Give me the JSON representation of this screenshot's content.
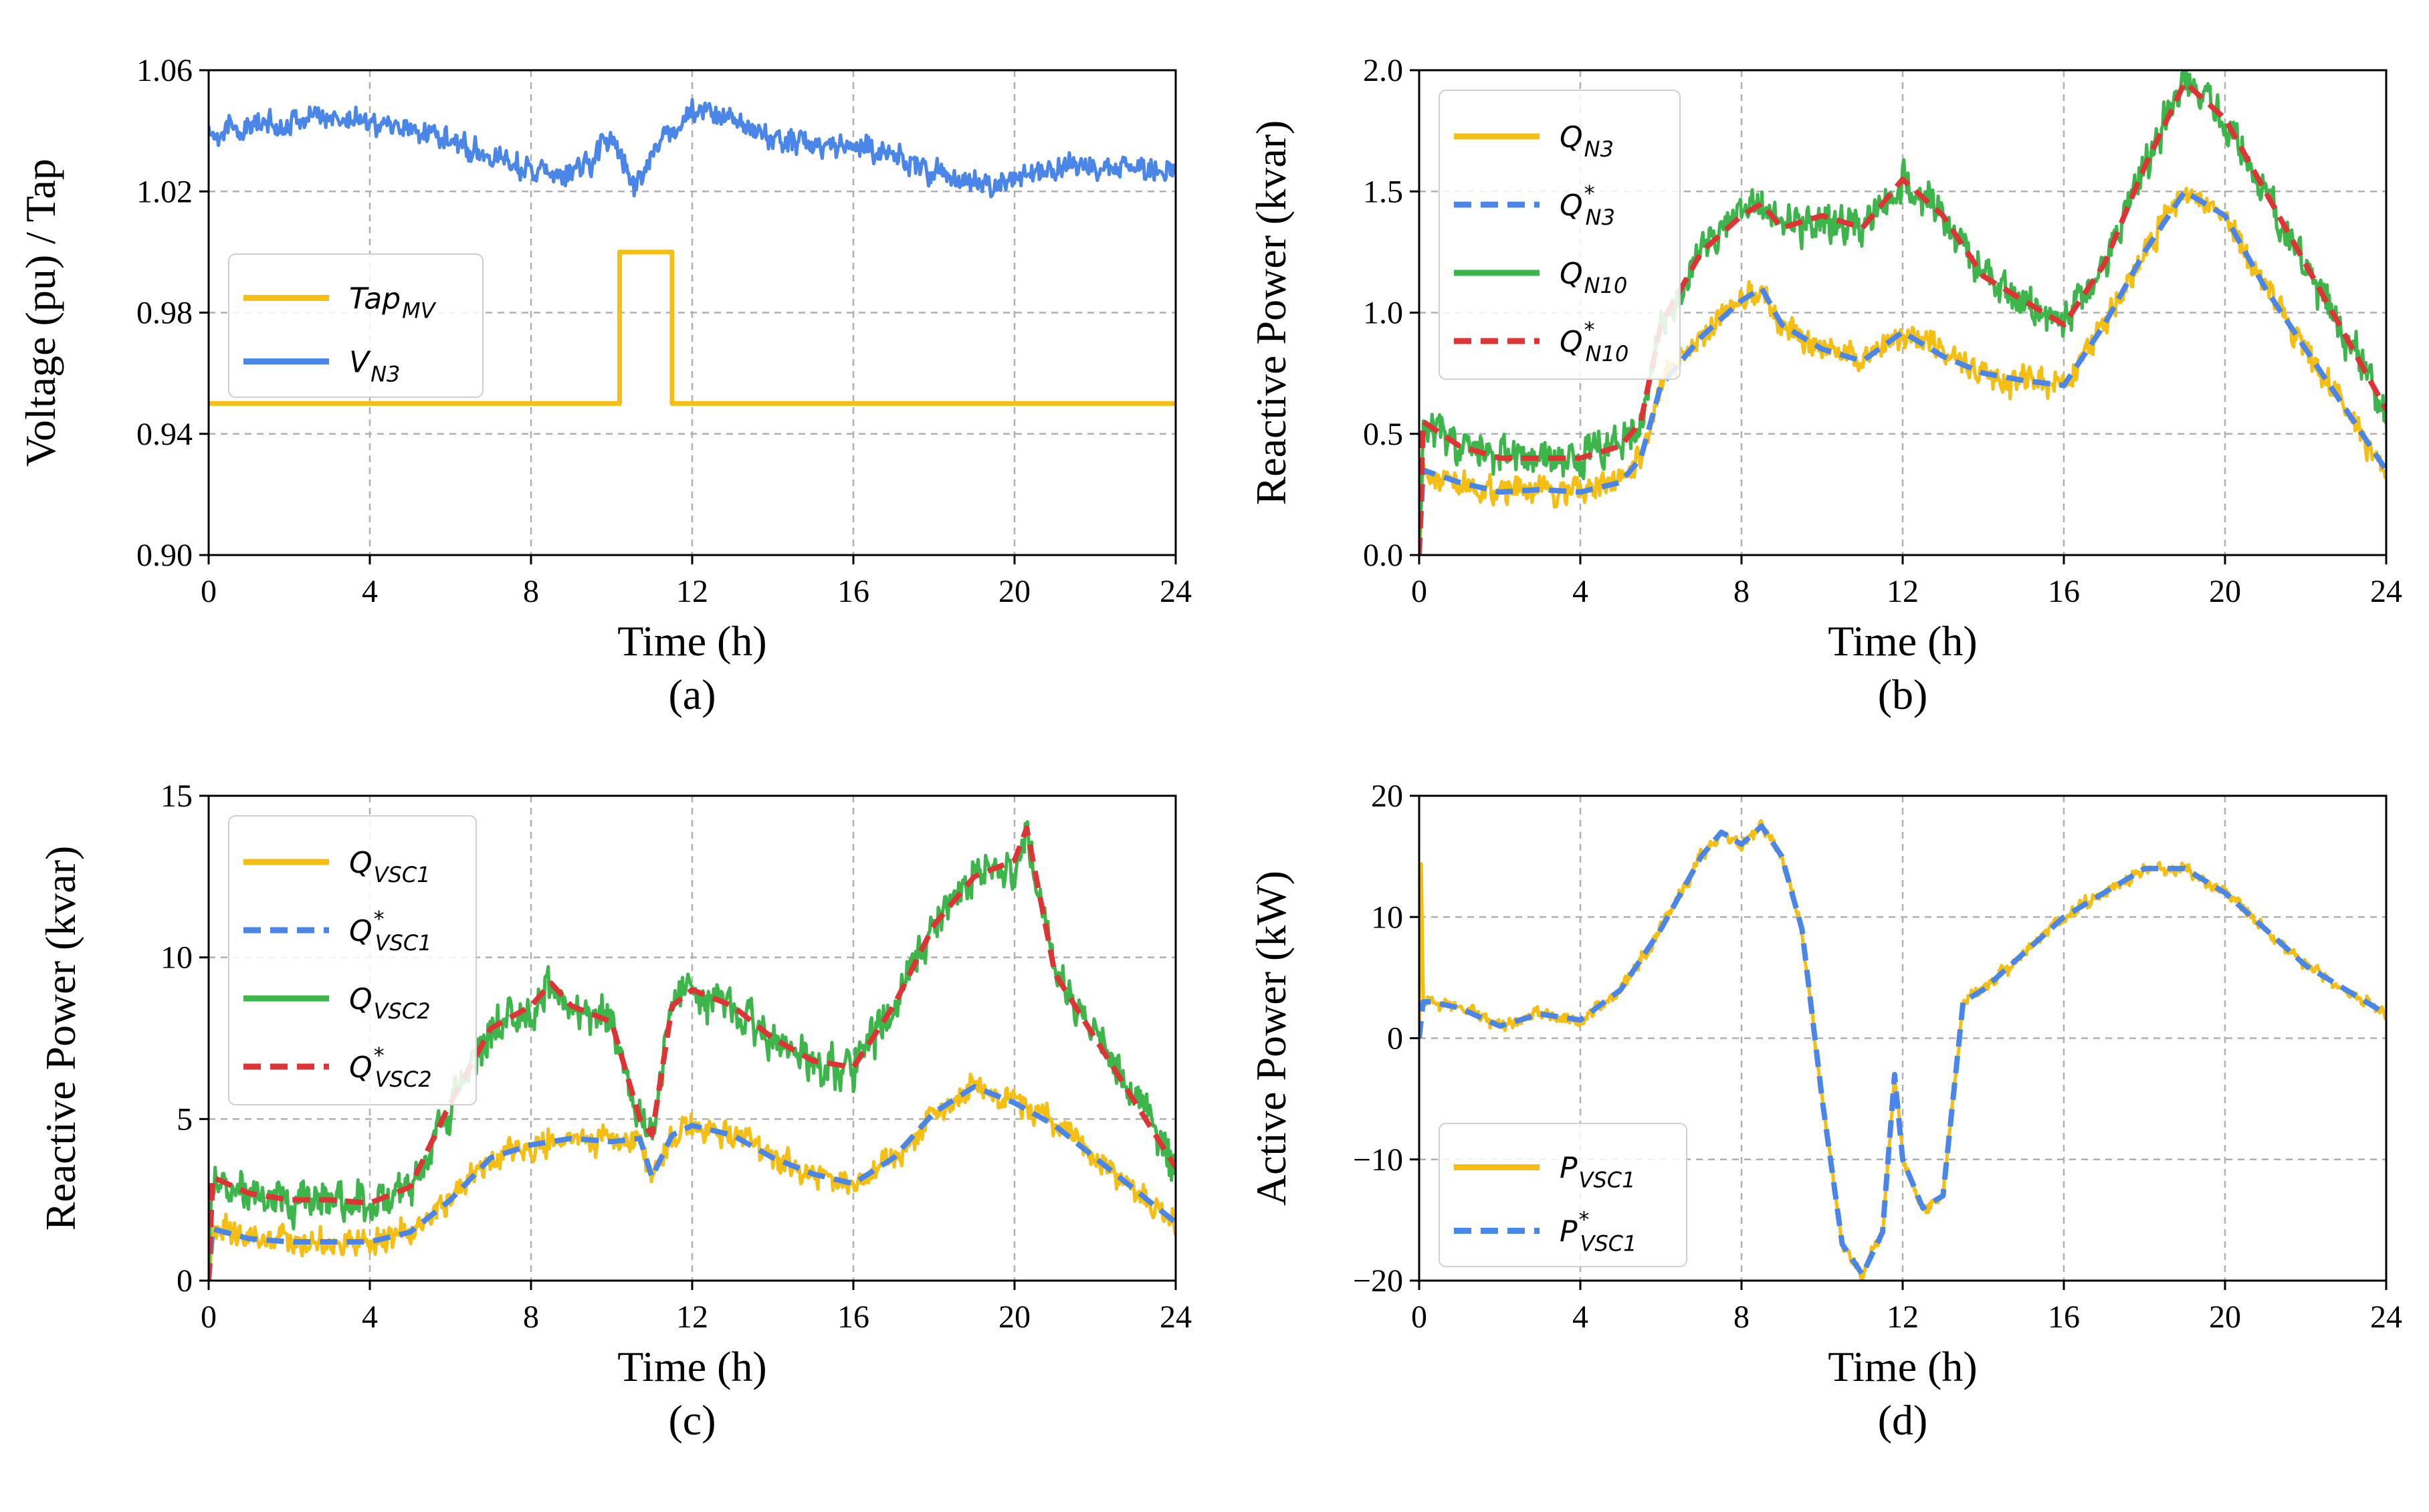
{
  "colors": {
    "yellow": "#F5BE12",
    "blue": "#4A86E8",
    "green": "#3CB54A",
    "red": "#DD3535"
  },
  "chart_data": [
    {
      "id": "a",
      "type": "line",
      "caption": "(a)",
      "xlabel": "Time (h)",
      "ylabel": "Voltage (pu) / Tap",
      "xlim": [
        0,
        24
      ],
      "ylim": [
        0.9,
        1.06
      ],
      "xticks": [
        "0",
        "4",
        "8",
        "12",
        "16",
        "20",
        "24"
      ],
      "yticks": [
        "0.90",
        "0.94",
        "0.98",
        "1.02",
        "1.06"
      ],
      "ytick_values": [
        0.9,
        0.94,
        0.98,
        1.02,
        1.06
      ],
      "legend": {
        "position": "center-left"
      },
      "series": [
        {
          "name": "Tap",
          "subscript": "MV",
          "color": "yellow",
          "dash": false,
          "noise": 0,
          "x": [
            0,
            10.2,
            10.2,
            11.5,
            11.5,
            24
          ],
          "y": [
            0.95,
            0.95,
            1.0,
            1.0,
            0.95,
            0.95
          ]
        },
        {
          "name": "V",
          "subscript": "N3",
          "color": "blue",
          "dash": false,
          "noise": 0.0035,
          "x": [
            0,
            1,
            2,
            3,
            4,
            5,
            6,
            7,
            8,
            8.8,
            9.5,
            10,
            10.3,
            10.6,
            11,
            11.5,
            12,
            12.5,
            13,
            14,
            15,
            16,
            17,
            18,
            19,
            20,
            21,
            22,
            23,
            24
          ],
          "y": [
            1.04,
            1.041,
            1.043,
            1.045,
            1.043,
            1.041,
            1.037,
            1.032,
            1.027,
            1.024,
            1.03,
            1.04,
            1.03,
            1.02,
            1.034,
            1.04,
            1.045,
            1.047,
            1.043,
            1.037,
            1.036,
            1.035,
            1.032,
            1.026,
            1.022,
            1.024,
            1.028,
            1.028,
            1.027,
            1.027
          ]
        }
      ]
    },
    {
      "id": "b",
      "type": "line",
      "caption": "(b)",
      "xlabel": "Time (h)",
      "ylabel": "Reactive Power (kvar)",
      "xlim": [
        0,
        24
      ],
      "ylim": [
        0.0,
        2.0
      ],
      "xticks": [
        "0",
        "4",
        "8",
        "12",
        "16",
        "20",
        "24"
      ],
      "yticks": [
        "0.0",
        "0.5",
        "1.0",
        "1.5",
        "2.0"
      ],
      "ytick_values": [
        0.0,
        0.5,
        1.0,
        1.5,
        2.0
      ],
      "legend": {
        "position": "top-left"
      },
      "series": [
        {
          "name": "Q",
          "subscript": "N3",
          "color": "yellow",
          "dash": false,
          "noise": 0.05,
          "x": [
            0,
            0.1,
            1,
            2,
            3,
            4,
            5,
            5.5,
            6,
            7,
            8,
            8.5,
            9,
            10,
            11,
            12,
            13,
            14,
            15,
            16,
            17,
            18,
            19,
            20,
            21,
            22,
            23,
            24
          ],
          "y": [
            0.0,
            0.35,
            0.3,
            0.26,
            0.27,
            0.26,
            0.3,
            0.4,
            0.7,
            0.9,
            1.05,
            1.1,
            0.95,
            0.85,
            0.8,
            0.92,
            0.82,
            0.75,
            0.72,
            0.7,
            0.95,
            1.25,
            1.5,
            1.4,
            1.1,
            0.85,
            0.6,
            0.35
          ]
        },
        {
          "name": "Q",
          "subscript": "N3",
          "star": true,
          "color": "blue",
          "dash": true,
          "noise": 0,
          "x": [
            0,
            0.1,
            1,
            2,
            3,
            4,
            5,
            5.5,
            6,
            7,
            8,
            8.5,
            9,
            10,
            11,
            12,
            13,
            14,
            15,
            16,
            17,
            18,
            19,
            20,
            21,
            22,
            23,
            24
          ],
          "y": [
            0.0,
            0.35,
            0.3,
            0.26,
            0.27,
            0.26,
            0.3,
            0.4,
            0.7,
            0.9,
            1.05,
            1.1,
            0.95,
            0.85,
            0.8,
            0.92,
            0.82,
            0.75,
            0.72,
            0.7,
            0.95,
            1.25,
            1.5,
            1.4,
            1.1,
            0.85,
            0.6,
            0.35
          ]
        },
        {
          "name": "Q",
          "subscript": "N10",
          "color": "green",
          "dash": false,
          "noise": 0.07,
          "x": [
            0,
            0.1,
            1,
            2,
            3,
            4,
            5,
            5.5,
            6,
            7,
            8,
            8.5,
            9,
            10,
            11,
            12,
            13,
            14,
            15,
            16,
            17,
            18,
            19,
            20,
            21,
            22,
            23,
            24
          ],
          "y": [
            0.0,
            0.55,
            0.45,
            0.4,
            0.4,
            0.4,
            0.45,
            0.55,
            0.95,
            1.25,
            1.4,
            1.45,
            1.35,
            1.4,
            1.35,
            1.55,
            1.4,
            1.15,
            1.05,
            0.95,
            1.2,
            1.6,
            1.95,
            1.8,
            1.5,
            1.2,
            0.9,
            0.6
          ]
        },
        {
          "name": "Q",
          "subscript": "N10",
          "star": true,
          "color": "red",
          "dash": true,
          "noise": 0,
          "x": [
            0,
            0.1,
            1,
            2,
            3,
            4,
            5,
            5.5,
            6,
            7,
            8,
            8.5,
            9,
            10,
            11,
            12,
            13,
            14,
            15,
            16,
            17,
            18,
            19,
            20,
            21,
            22,
            23,
            24
          ],
          "y": [
            0.0,
            0.55,
            0.45,
            0.4,
            0.4,
            0.4,
            0.45,
            0.55,
            0.95,
            1.25,
            1.4,
            1.45,
            1.35,
            1.4,
            1.35,
            1.55,
            1.4,
            1.15,
            1.05,
            0.95,
            1.2,
            1.6,
            1.95,
            1.8,
            1.5,
            1.2,
            0.9,
            0.6
          ]
        }
      ]
    },
    {
      "id": "c",
      "type": "line",
      "caption": "(c)",
      "xlabel": "Time (h)",
      "ylabel": "Reactive Power (kvar)",
      "xlim": [
        0,
        24
      ],
      "ylim": [
        0,
        15
      ],
      "xticks": [
        "0",
        "4",
        "8",
        "12",
        "16",
        "20",
        "24"
      ],
      "yticks": [
        "0",
        "5",
        "10",
        "15"
      ],
      "ytick_values": [
        0,
        5,
        10,
        15
      ],
      "legend": {
        "position": "top-left"
      },
      "series": [
        {
          "name": "Q",
          "subscript": "VSC1",
          "color": "yellow",
          "dash": false,
          "noise": 0.35,
          "x": [
            0,
            0.1,
            1,
            2,
            3,
            4,
            5,
            6,
            7,
            8,
            9,
            10,
            10.7,
            11,
            11.5,
            12,
            13,
            14,
            15,
            16,
            17,
            18,
            19,
            20,
            21,
            22,
            23,
            24
          ],
          "y": [
            0,
            1.6,
            1.3,
            1.2,
            1.2,
            1.2,
            1.5,
            2.5,
            3.8,
            4.2,
            4.4,
            4.3,
            4.4,
            3.2,
            4.5,
            4.8,
            4.5,
            3.8,
            3.3,
            3.0,
            3.8,
            5.2,
            6.0,
            5.5,
            4.8,
            3.8,
            2.8,
            1.8
          ]
        },
        {
          "name": "Q",
          "subscript": "VSC1",
          "star": true,
          "color": "blue",
          "dash": true,
          "noise": 0,
          "x": [
            0,
            0.1,
            1,
            2,
            3,
            4,
            5,
            6,
            7,
            8,
            9,
            10,
            10.7,
            11,
            11.5,
            12,
            13,
            14,
            15,
            16,
            17,
            18,
            19,
            20,
            21,
            22,
            23,
            24
          ],
          "y": [
            0,
            1.6,
            1.3,
            1.2,
            1.2,
            1.2,
            1.5,
            2.5,
            3.8,
            4.2,
            4.4,
            4.3,
            4.4,
            3.2,
            4.5,
            4.8,
            4.5,
            3.8,
            3.3,
            3.0,
            3.8,
            5.2,
            6.0,
            5.5,
            4.8,
            3.8,
            2.8,
            1.8
          ]
        },
        {
          "name": "Q",
          "subscript": "VSC2",
          "color": "green",
          "dash": false,
          "noise": 0.55,
          "x": [
            0,
            0.1,
            1,
            2,
            3,
            4,
            5,
            6,
            7,
            8,
            8.5,
            9,
            10,
            10.7,
            11,
            11.5,
            12,
            13,
            14,
            15,
            16,
            17,
            18,
            19,
            20,
            20.3,
            21,
            22,
            23,
            24
          ],
          "y": [
            0,
            3.2,
            2.7,
            2.5,
            2.5,
            2.4,
            2.9,
            5.5,
            7.8,
            8.5,
            9.2,
            8.5,
            8.0,
            5.0,
            4.5,
            8.5,
            9.0,
            8.5,
            7.5,
            6.8,
            6.6,
            8.5,
            11.0,
            12.5,
            13.0,
            14.0,
            9.5,
            7.5,
            5.5,
            3.5
          ]
        },
        {
          "name": "Q",
          "subscript": "VSC2",
          "star": true,
          "color": "red",
          "dash": true,
          "noise": 0,
          "x": [
            0,
            0.1,
            1,
            2,
            3,
            4,
            5,
            6,
            7,
            8,
            8.5,
            9,
            10,
            10.7,
            11,
            11.5,
            12,
            13,
            14,
            15,
            16,
            17,
            18,
            19,
            20,
            20.3,
            21,
            22,
            23,
            24
          ],
          "y": [
            0,
            3.2,
            2.7,
            2.5,
            2.5,
            2.4,
            2.9,
            5.5,
            7.8,
            8.5,
            9.2,
            8.5,
            8.0,
            5.0,
            4.5,
            8.5,
            9.0,
            8.5,
            7.5,
            6.8,
            6.6,
            8.5,
            11.0,
            12.5,
            13.0,
            14.0,
            9.5,
            7.5,
            5.5,
            3.5
          ]
        }
      ]
    },
    {
      "id": "d",
      "type": "line",
      "caption": "(d)",
      "xlabel": "Time (h)",
      "ylabel": "Active Power (kW)",
      "xlim": [
        0,
        24
      ],
      "ylim": [
        -20,
        20
      ],
      "xticks": [
        "0",
        "4",
        "8",
        "12",
        "16",
        "20",
        "24"
      ],
      "yticks": [
        "−20",
        "−10",
        "0",
        "10",
        "20"
      ],
      "ytick_values": [
        -20,
        -10,
        0,
        10,
        20
      ],
      "legend": {
        "position": "bottom-left"
      },
      "series": [
        {
          "name": "P",
          "subscript": "VSC1",
          "color": "yellow",
          "dash": false,
          "noise": 0.45,
          "x": [
            0,
            0.05,
            0.1,
            0.3,
            1,
            2,
            3,
            4,
            5,
            6,
            7,
            7.5,
            8,
            8.5,
            9,
            9.5,
            10,
            10.5,
            11,
            11.5,
            11.8,
            12,
            12.5,
            13,
            13.5,
            14,
            15,
            16,
            17,
            18,
            19,
            20,
            21,
            22,
            23,
            24
          ],
          "y": [
            0,
            15,
            3,
            3,
            2.5,
            1,
            2,
            1.5,
            4,
            9,
            15,
            17,
            16,
            17.5,
            15,
            9,
            -5,
            -17,
            -19.5,
            -16,
            -3,
            -10,
            -14,
            -13,
            3,
            4,
            7,
            10,
            12,
            14,
            14,
            12,
            9,
            6,
            4,
            2
          ]
        },
        {
          "name": "P",
          "subscript": "VSC1",
          "star": true,
          "color": "blue",
          "dash": true,
          "noise": 0,
          "x": [
            0,
            0.1,
            0.3,
            1,
            2,
            3,
            4,
            5,
            6,
            7,
            7.5,
            8,
            8.5,
            9,
            9.5,
            10,
            10.5,
            11,
            11.5,
            11.8,
            12,
            12.5,
            13,
            13.5,
            14,
            15,
            16,
            17,
            18,
            19,
            20,
            21,
            22,
            23,
            24
          ],
          "y": [
            0,
            3,
            3,
            2.5,
            1,
            2,
            1.5,
            4,
            9,
            15,
            17,
            16,
            17.5,
            15,
            9,
            -5,
            -17,
            -19.5,
            -16,
            -3,
            -10,
            -14,
            -13,
            3,
            4,
            7,
            10,
            12,
            14,
            14,
            12,
            9,
            6,
            4,
            2
          ]
        }
      ]
    }
  ]
}
